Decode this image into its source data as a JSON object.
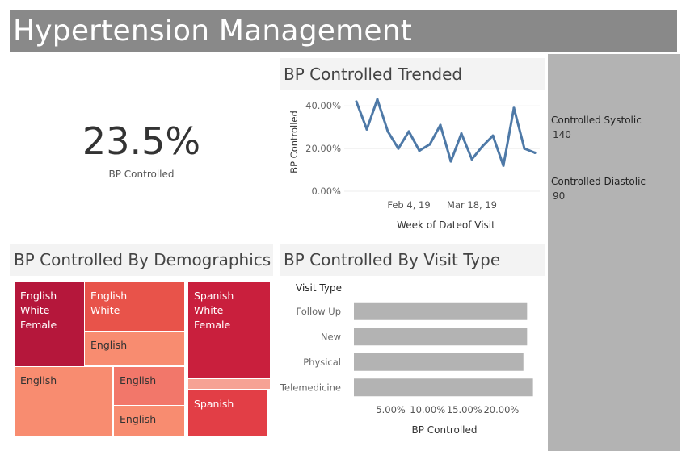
{
  "header": {
    "title": "Hypertension Management"
  },
  "kpi": {
    "value": "23.5%",
    "label": "BP Controlled"
  },
  "side_panel": {
    "systolic_label": "Controlled Systolic",
    "systolic_value": "140",
    "diastolic_label": "Controlled Diastolic",
    "diastolic_value": "90",
    "background": "#b3b3b3"
  },
  "panels": {
    "trend_title": "BP Controlled Trended",
    "demographics_title": "BP Controlled By Demographics",
    "visit_type_title": "BP Controlled By Visit Type"
  },
  "chart_data": [
    {
      "type": "line",
      "title": "BP Controlled Trended",
      "xlabel": "Week of Dateof Visit",
      "ylabel": "BP Controlled",
      "x_tick_labels": [
        "Feb 4, 19",
        "Mar 18, 19"
      ],
      "y_tick_labels": [
        "40.00%",
        "20.00%",
        "0.00%"
      ],
      "ylim": [
        0,
        0.45
      ],
      "color": "#4e79a7",
      "grid": "horizontal",
      "series": [
        {
          "values": [
            0.42,
            0.29,
            0.43,
            0.28,
            0.2,
            0.28,
            0.19,
            0.22,
            0.31,
            0.14,
            0.27,
            0.15,
            0.21,
            0.26,
            0.12,
            0.39,
            0.2,
            0.18
          ]
        }
      ]
    },
    {
      "type": "treemap",
      "title": "BP Controlled By Demographics",
      "cells": [
        {
          "label": "English\nWhite\nFemale",
          "color": "#b5173b",
          "text_color": "#ffffff"
        },
        {
          "label": "English\nWhite",
          "color": "#e8534a",
          "text_color": "#ffffff"
        },
        {
          "label": "English",
          "color": "#f88c70",
          "text_color": "#333333"
        },
        {
          "label": "English",
          "color": "#f88c70",
          "text_color": "#333333"
        },
        {
          "label": "English",
          "color": "#f2776a",
          "text_color": "#333333"
        },
        {
          "label": "English",
          "color": "#f88c70",
          "text_color": "#333333"
        },
        {
          "label": "Spanish\nWhite\nFemale",
          "color": "#c91f3d",
          "text_color": "#ffffff"
        },
        {
          "label": "",
          "color": "#f6a294",
          "text_color": "#333333"
        },
        {
          "label": "Spanish",
          "color": "#e23e46",
          "text_color": "#ffffff"
        }
      ]
    },
    {
      "type": "bar",
      "orientation": "horizontal",
      "title": "BP Controlled By Visit Type",
      "row_header": "Visit Type",
      "categories": [
        "Follow Up",
        "New",
        "Physical",
        "Telemedicine"
      ],
      "values": [
        0.235,
        0.235,
        0.23,
        0.243
      ],
      "xlabel": "BP Controlled",
      "x_tick_labels": [
        "5.00%",
        "10.00%",
        "15.00%",
        "20.00%"
      ],
      "xlim": [
        0,
        0.25
      ],
      "color": "#b3b3b3"
    }
  ]
}
